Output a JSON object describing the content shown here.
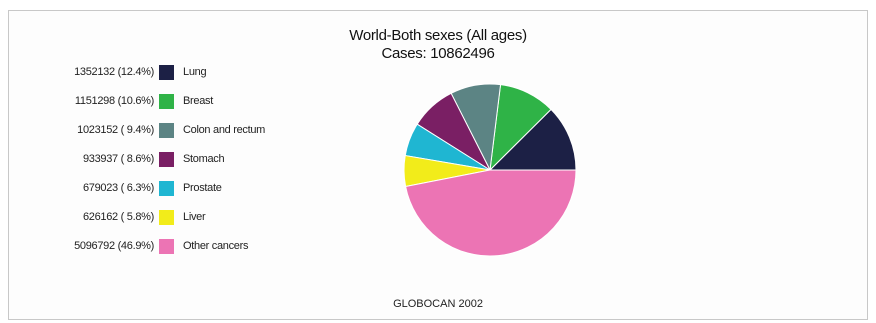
{
  "chart_data": {
    "type": "pie",
    "title": "World-Both sexes (All ages)",
    "subtitle": "Cases: 10862496",
    "footer": "GLOBOCAN 2002",
    "legend_position": "left",
    "slices": [
      {
        "label": "Lung",
        "value": 1352132,
        "display": "1352132 (12.4%)",
        "color": "#1c2045"
      },
      {
        "label": "Breast",
        "value": 1151298,
        "display": "1151298 (10.6%)",
        "color": "#2fb347"
      },
      {
        "label": "Colon and rectum",
        "value": 1023152,
        "display": "1023152 ( 9.4%)",
        "color": "#5c8484"
      },
      {
        "label": "Stomach",
        "value": 933937,
        "display": "933937 ( 8.6%)",
        "color": "#7a1f64"
      },
      {
        "label": "Prostate",
        "value": 679023,
        "display": "679023 ( 6.3%)",
        "color": "#1fb6d2"
      },
      {
        "label": "Liver",
        "value": 626162,
        "display": "626162 ( 5.8%)",
        "color": "#f2ec1a"
      },
      {
        "label": "Other cancers",
        "value": 5096792,
        "display": "5096792 (46.9%)",
        "color": "#ec74b4"
      }
    ]
  }
}
